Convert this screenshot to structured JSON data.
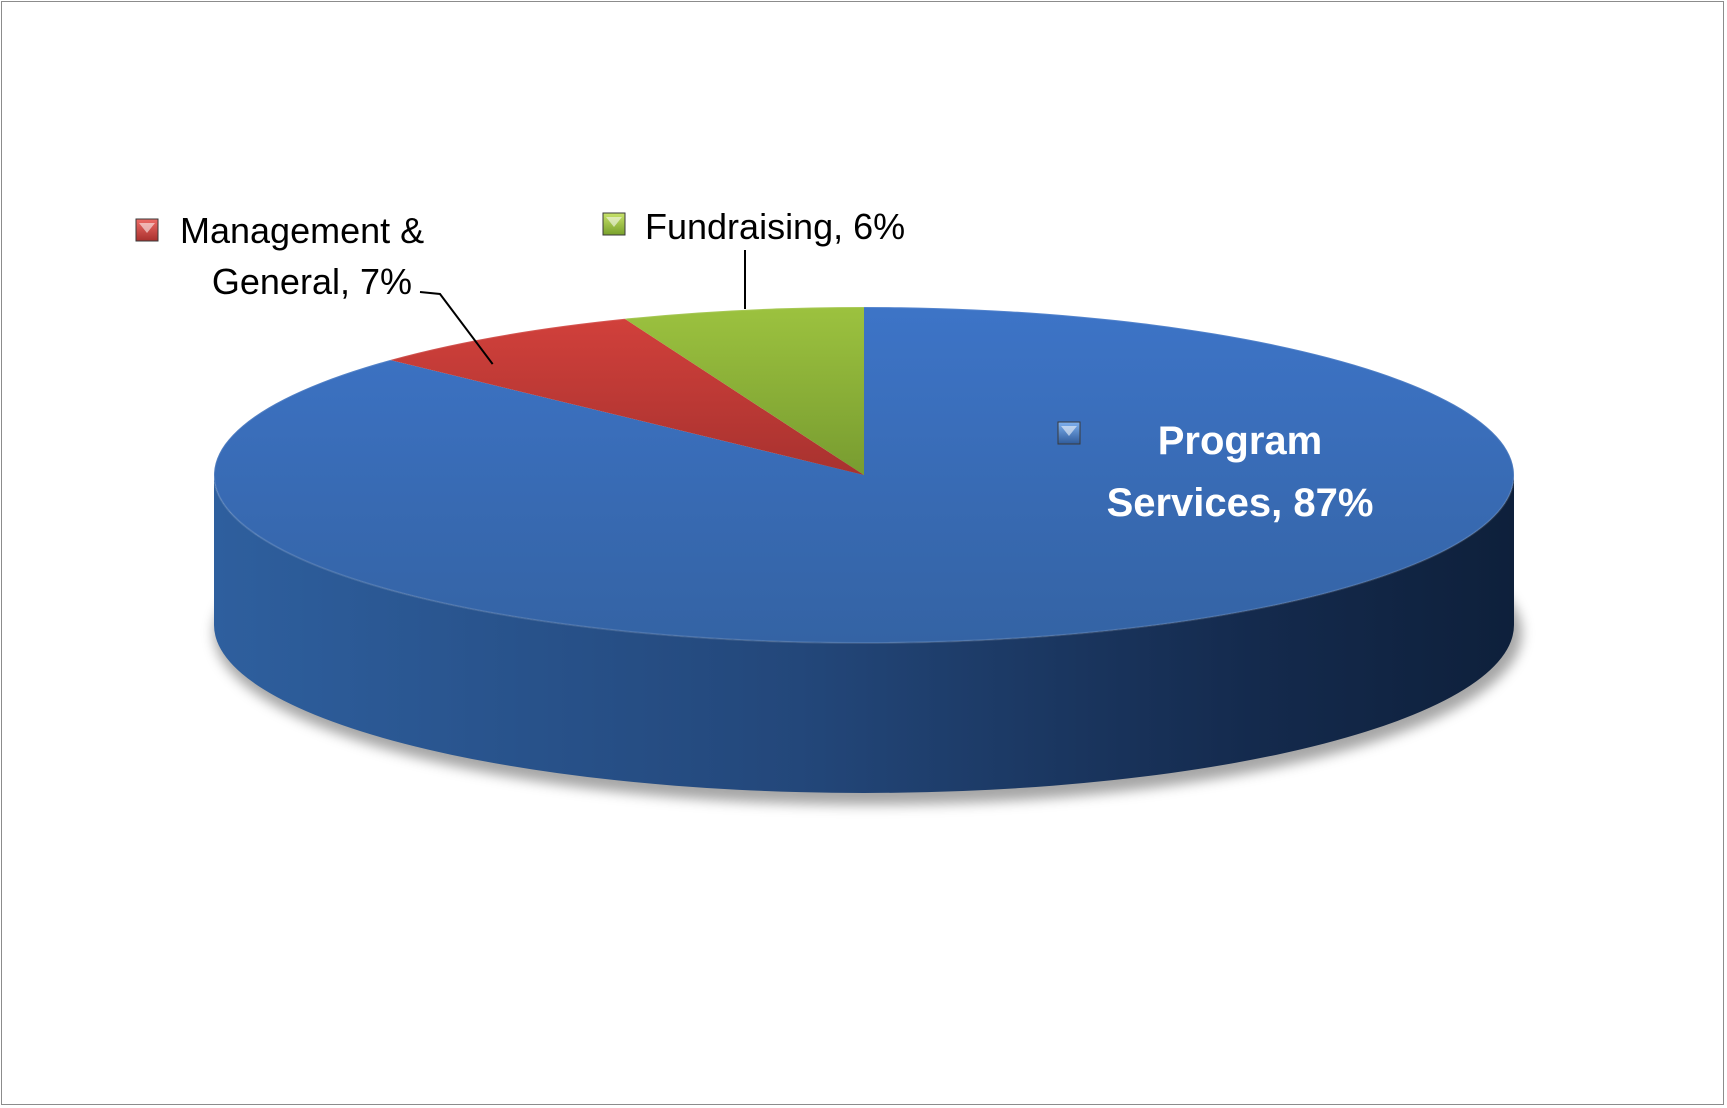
{
  "chart_data": {
    "type": "pie",
    "style": "3d",
    "legend": "none",
    "slices": [
      {
        "category": "Program Services",
        "value": 87,
        "label_line1": "Program",
        "label_line2": "Services, 87%",
        "color": "#3c6fbf",
        "label_color": "#ffffff",
        "label_bold": true
      },
      {
        "category": "Management & General",
        "value": 7,
        "label_line1": "Management &",
        "label_line2": "General, 7%",
        "color": "#c23a36",
        "label_color": "#000000",
        "label_bold": false
      },
      {
        "category": "Fundraising",
        "value": 6,
        "label_line1": "Fundraising, 6%",
        "label_line2": "",
        "color": "#8db53a",
        "label_color": "#000000",
        "label_bold": false
      }
    ]
  }
}
